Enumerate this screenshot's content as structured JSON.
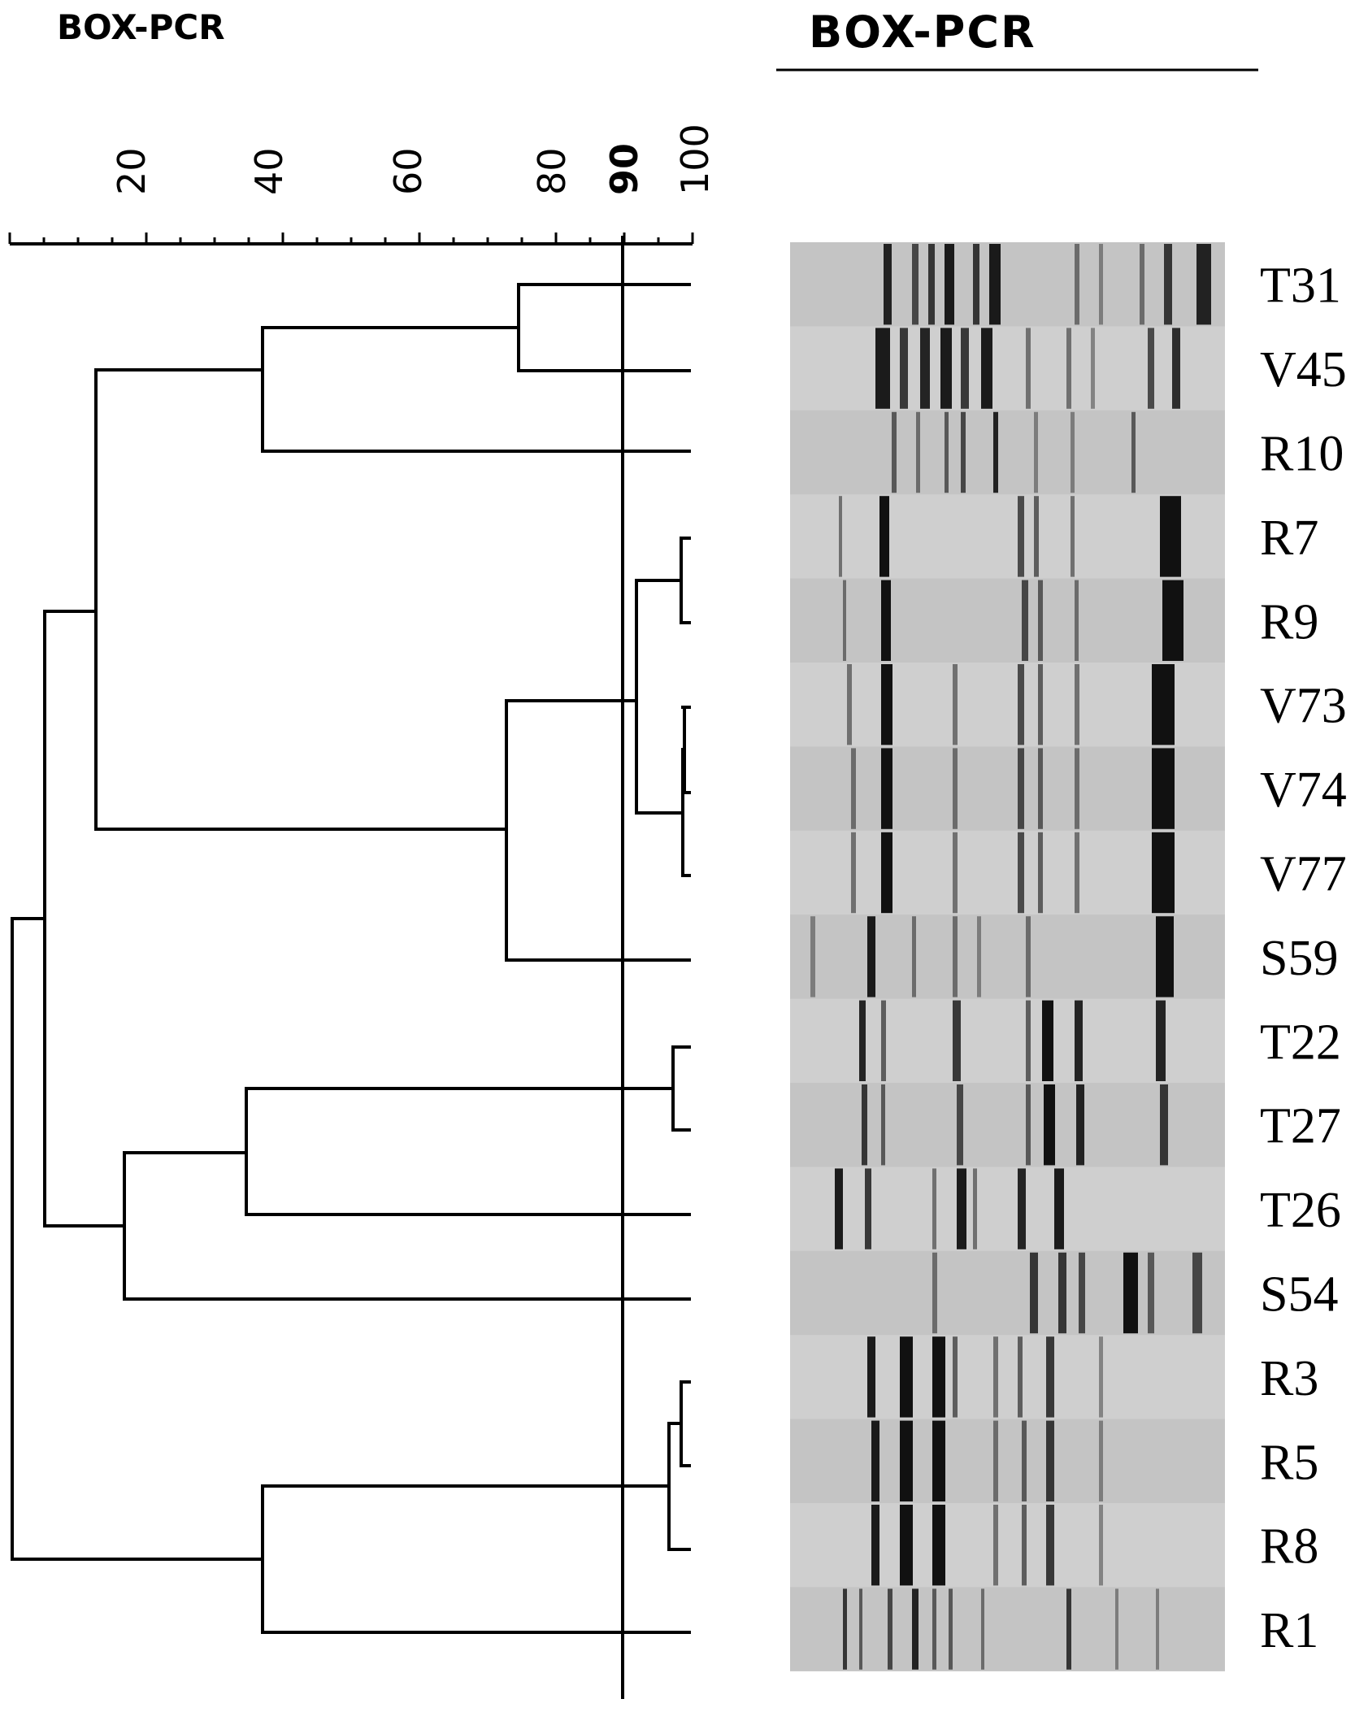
{
  "left_title": "BOX-PCR",
  "right_title": "BOX-PCR",
  "scale": {
    "tick_labels": [
      "20",
      "40",
      "60",
      "80",
      "90",
      "100"
    ],
    "cutoff": 90
  },
  "strains": [
    "T31",
    "V45",
    "R10",
    "R7",
    "R9",
    "V73",
    "V74",
    "V77",
    "S59",
    "T22",
    "T27",
    "T26",
    "S54",
    "R3",
    "R5",
    "R8",
    "R1"
  ],
  "colors": {
    "line": "#000000",
    "gel_background": "#c8c8c8",
    "band": "#111111"
  }
}
